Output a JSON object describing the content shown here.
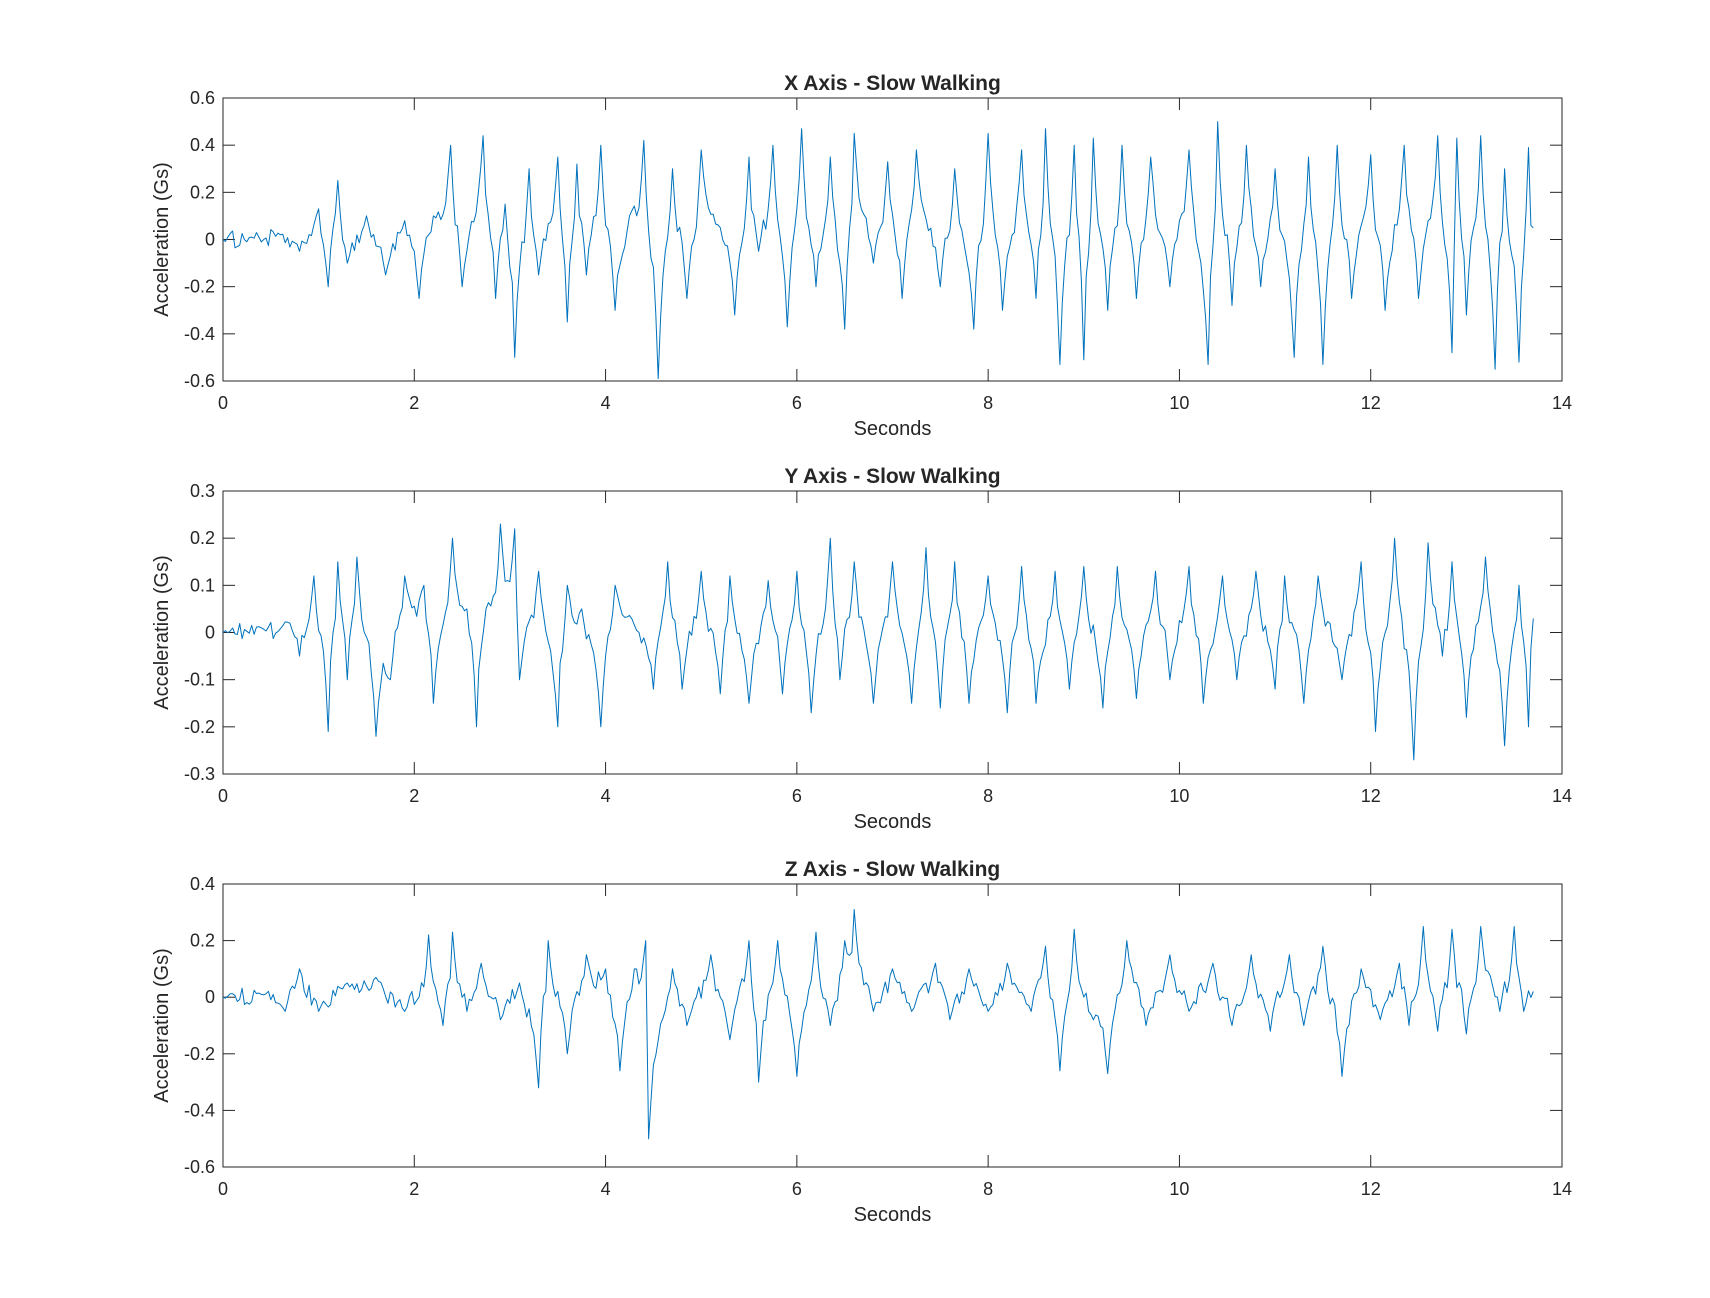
{
  "colors": {
    "line": "#0072BD",
    "axis": "#262626",
    "background": "#ffffff"
  },
  "chart_data": [
    {
      "type": "line",
      "title": "X Axis - Slow Walking",
      "xlabel": "Seconds",
      "ylabel": "Acceleration (Gs)",
      "xlim": [
        0,
        14
      ],
      "ylim": [
        -0.6,
        0.6
      ],
      "xticks": [
        "0",
        "2",
        "4",
        "6",
        "8",
        "10",
        "12",
        "14"
      ],
      "yticks": [
        "-0.6",
        "-0.4",
        "-0.2",
        "0",
        "0.2",
        "0.4",
        "0.6"
      ],
      "grid": false,
      "series": [
        {
          "x": [
            0,
            0.3,
            0.6,
            0.8,
            1.0,
            1.1,
            1.2,
            1.3,
            1.5,
            1.7,
            1.9,
            2.05,
            2.2,
            2.38,
            2.5,
            2.72,
            2.85,
            2.95,
            3.05,
            3.2,
            3.3,
            3.5,
            3.6,
            3.7,
            3.8,
            3.95,
            4.1,
            4.25,
            4.4,
            4.55,
            4.7,
            4.85,
            5.0,
            5.2,
            5.35,
            5.5,
            5.6,
            5.75,
            5.9,
            6.05,
            6.2,
            6.35,
            6.5,
            6.6,
            6.8,
            6.95,
            7.1,
            7.25,
            7.5,
            7.65,
            7.85,
            8.0,
            8.15,
            8.35,
            8.5,
            8.6,
            8.75,
            8.9,
            9.0,
            9.1,
            9.25,
            9.4,
            9.55,
            9.7,
            9.9,
            10.1,
            10.3,
            10.4,
            10.55,
            10.7,
            10.85,
            11.0,
            11.2,
            11.35,
            11.5,
            11.65,
            11.8,
            12.0,
            12.15,
            12.35,
            12.5,
            12.7,
            12.85,
            12.9,
            13.0,
            13.15,
            13.3,
            13.4,
            13.55,
            13.65,
            13.7
          ],
          "values": [
            0,
            0.01,
            0.02,
            -0.05,
            0.13,
            -0.2,
            0.25,
            -0.1,
            0.1,
            -0.15,
            0.08,
            -0.25,
            0.1,
            0.4,
            -0.2,
            0.44,
            -0.25,
            0.15,
            -0.5,
            0.3,
            -0.15,
            0.35,
            -0.35,
            0.32,
            -0.15,
            0.4,
            -0.3,
            0.1,
            0.42,
            -0.59,
            0.3,
            -0.25,
            0.38,
            0.05,
            -0.32,
            0.35,
            -0.05,
            0.4,
            -0.37,
            0.47,
            -0.2,
            0.35,
            -0.38,
            0.45,
            -0.1,
            0.33,
            -0.25,
            0.38,
            -0.2,
            0.3,
            -0.38,
            0.45,
            -0.3,
            0.38,
            -0.25,
            0.47,
            -0.53,
            0.4,
            -0.51,
            0.43,
            -0.3,
            0.4,
            -0.25,
            0.35,
            -0.2,
            0.38,
            -0.53,
            0.5,
            -0.28,
            0.4,
            -0.2,
            0.3,
            -0.5,
            0.35,
            -0.53,
            0.4,
            -0.25,
            0.36,
            -0.3,
            0.4,
            -0.25,
            0.44,
            -0.48,
            0.43,
            -0.32,
            0.44,
            -0.55,
            0.3,
            -0.52,
            0.39,
            0.05
          ]
        }
      ]
    },
    {
      "type": "line",
      "title": "Y Axis - Slow Walking",
      "xlabel": "Seconds",
      "ylabel": "Acceleration (Gs)",
      "xlim": [
        0,
        14
      ],
      "ylim": [
        -0.3,
        0.3
      ],
      "xticks": [
        "0",
        "2",
        "4",
        "6",
        "8",
        "10",
        "12",
        "14"
      ],
      "yticks": [
        "-0.3",
        "-0.2",
        "-0.1",
        "0",
        "0.1",
        "0.2",
        "0.3"
      ],
      "grid": false,
      "series": [
        {
          "x": [
            0,
            0.4,
            0.7,
            0.8,
            0.95,
            1.1,
            1.2,
            1.3,
            1.4,
            1.6,
            1.75,
            1.9,
            2.1,
            2.2,
            2.4,
            2.55,
            2.65,
            2.75,
            2.9,
            3.05,
            3.1,
            3.3,
            3.5,
            3.6,
            3.75,
            3.95,
            4.1,
            4.35,
            4.5,
            4.65,
            4.8,
            5.0,
            5.2,
            5.3,
            5.5,
            5.7,
            5.85,
            6.0,
            6.15,
            6.35,
            6.45,
            6.6,
            6.8,
            7.0,
            7.2,
            7.35,
            7.5,
            7.65,
            7.8,
            8.0,
            8.2,
            8.35,
            8.5,
            8.7,
            8.85,
            9.0,
            9.2,
            9.35,
            9.55,
            9.75,
            9.9,
            10.1,
            10.25,
            10.45,
            10.6,
            10.8,
            11.0,
            11.1,
            11.3,
            11.45,
            11.7,
            11.9,
            12.05,
            12.25,
            12.45,
            12.6,
            12.75,
            12.85,
            13.0,
            13.2,
            13.4,
            13.55,
            13.65,
            13.7
          ],
          "values": [
            0,
            0.01,
            0.02,
            -0.05,
            0.12,
            -0.21,
            0.15,
            -0.1,
            0.16,
            -0.22,
            -0.1,
            0.12,
            0.1,
            -0.15,
            0.2,
            0.05,
            -0.2,
            0.05,
            0.23,
            0.22,
            -0.1,
            0.13,
            -0.2,
            0.1,
            0.05,
            -0.2,
            0.1,
            0.0,
            -0.12,
            0.15,
            -0.12,
            0.13,
            -0.13,
            0.12,
            -0.15,
            0.11,
            -0.13,
            0.13,
            -0.17,
            0.2,
            -0.1,
            0.15,
            -0.15,
            0.15,
            -0.15,
            0.18,
            -0.16,
            0.15,
            -0.15,
            0.12,
            -0.17,
            0.14,
            -0.15,
            0.13,
            -0.12,
            0.14,
            -0.16,
            0.14,
            -0.14,
            0.13,
            -0.1,
            0.14,
            -0.15,
            0.12,
            -0.1,
            0.13,
            -0.12,
            0.12,
            -0.15,
            0.12,
            -0.1,
            0.15,
            -0.21,
            0.2,
            -0.27,
            0.19,
            -0.05,
            0.15,
            -0.18,
            0.16,
            -0.24,
            0.1,
            -0.2,
            0.03
          ]
        }
      ]
    },
    {
      "type": "line",
      "title": "Z Axis - Slow Walking",
      "xlabel": "Seconds",
      "ylabel": "Acceleration (Gs)",
      "xlim": [
        0,
        14
      ],
      "ylim": [
        -0.6,
        0.4
      ],
      "xticks": [
        "0",
        "2",
        "4",
        "6",
        "8",
        "10",
        "12",
        "14"
      ],
      "yticks": [
        "-0.6",
        "-0.4",
        "-0.2",
        "0",
        "0.2",
        "0.4"
      ],
      "grid": false,
      "series": [
        {
          "x": [
            0,
            0.4,
            0.65,
            0.8,
            1.0,
            1.3,
            1.6,
            1.9,
            2.05,
            2.15,
            2.3,
            2.4,
            2.55,
            2.7,
            2.9,
            3.1,
            3.3,
            3.4,
            3.6,
            3.8,
            4.0,
            4.15,
            4.3,
            4.42,
            4.45,
            4.7,
            4.85,
            5.1,
            5.3,
            5.5,
            5.6,
            5.8,
            6.0,
            6.2,
            6.35,
            6.5,
            6.6,
            6.8,
            7.0,
            7.2,
            7.45,
            7.6,
            7.8,
            8.0,
            8.2,
            8.45,
            8.6,
            8.75,
            8.9,
            9.05,
            9.25,
            9.45,
            9.65,
            9.9,
            10.1,
            10.35,
            10.55,
            10.75,
            10.95,
            11.15,
            11.3,
            11.5,
            11.7,
            11.9,
            12.1,
            12.3,
            12.4,
            12.55,
            12.7,
            12.85,
            13.0,
            13.15,
            13.35,
            13.5,
            13.6,
            13.7
          ],
          "values": [
            0,
            0.01,
            -0.05,
            0.1,
            -0.05,
            0.05,
            0.07,
            -0.05,
            0.0,
            0.22,
            -0.1,
            0.23,
            -0.05,
            0.12,
            -0.08,
            0.05,
            -0.32,
            0.2,
            -0.2,
            0.15,
            0.1,
            -0.26,
            0.1,
            0.2,
            -0.5,
            0.1,
            -0.1,
            0.15,
            -0.15,
            0.2,
            -0.3,
            0.2,
            -0.28,
            0.23,
            -0.1,
            0.2,
            0.31,
            -0.05,
            0.1,
            -0.05,
            0.12,
            -0.08,
            0.1,
            -0.05,
            0.12,
            -0.05,
            0.18,
            -0.26,
            0.24,
            -0.05,
            -0.27,
            0.2,
            -0.1,
            0.15,
            -0.05,
            0.12,
            -0.1,
            0.15,
            -0.12,
            0.15,
            -0.1,
            0.18,
            -0.28,
            0.1,
            -0.08,
            0.12,
            -0.1,
            0.25,
            -0.12,
            0.24,
            -0.13,
            0.25,
            -0.05,
            0.25,
            -0.05,
            0.02
          ]
        }
      ]
    }
  ]
}
